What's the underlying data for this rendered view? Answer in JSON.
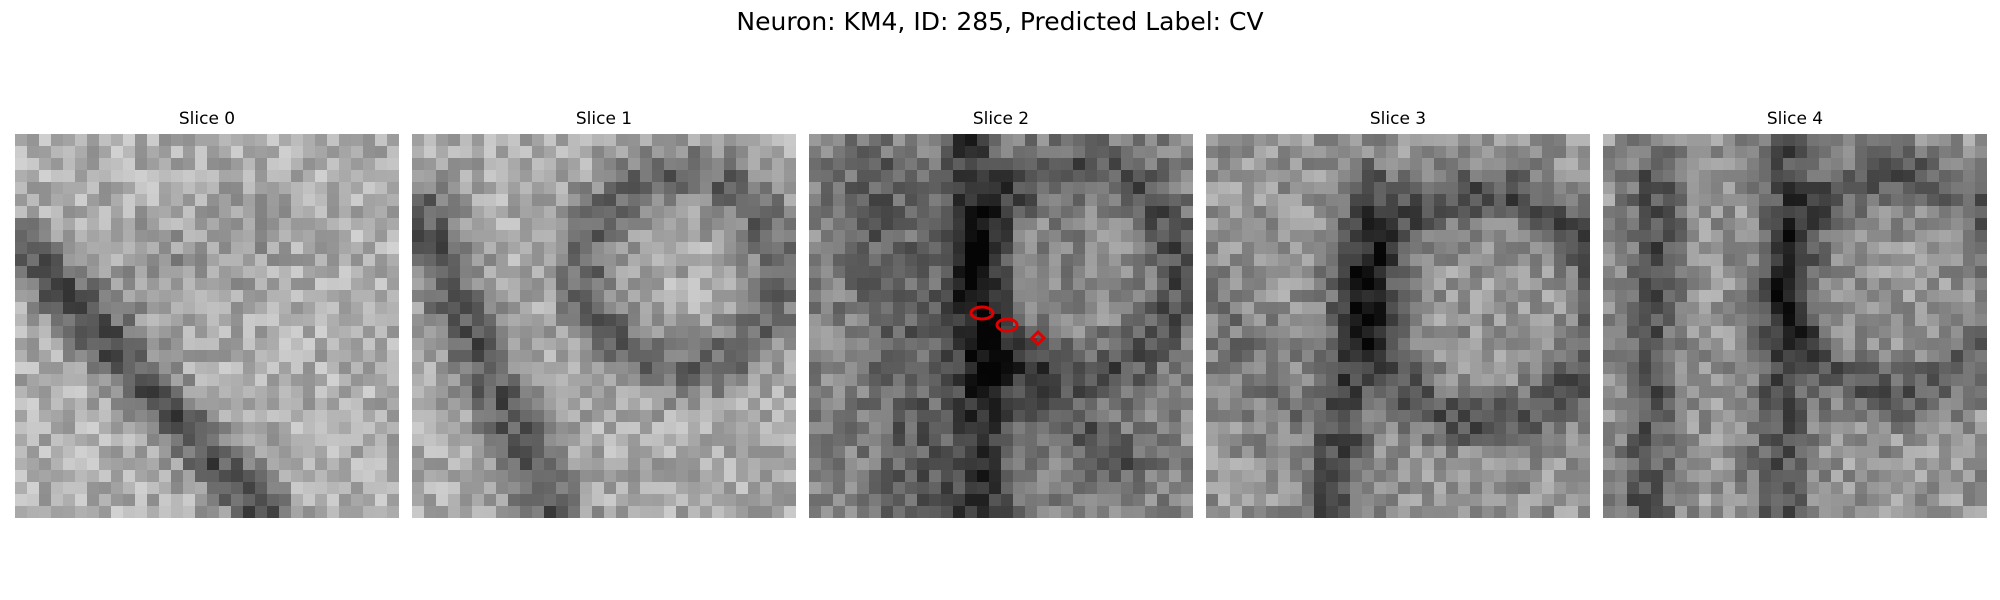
{
  "figure": {
    "title": "Neuron: KM4, ID: 285, Predicted Label: CV",
    "colormap": "gray",
    "marker_color": "#e00000"
  },
  "panels": [
    {
      "title": "Slice 0"
    },
    {
      "title": "Slice 1"
    },
    {
      "title": "Slice 2"
    },
    {
      "title": "Slice 3"
    },
    {
      "title": "Slice 4"
    }
  ]
}
